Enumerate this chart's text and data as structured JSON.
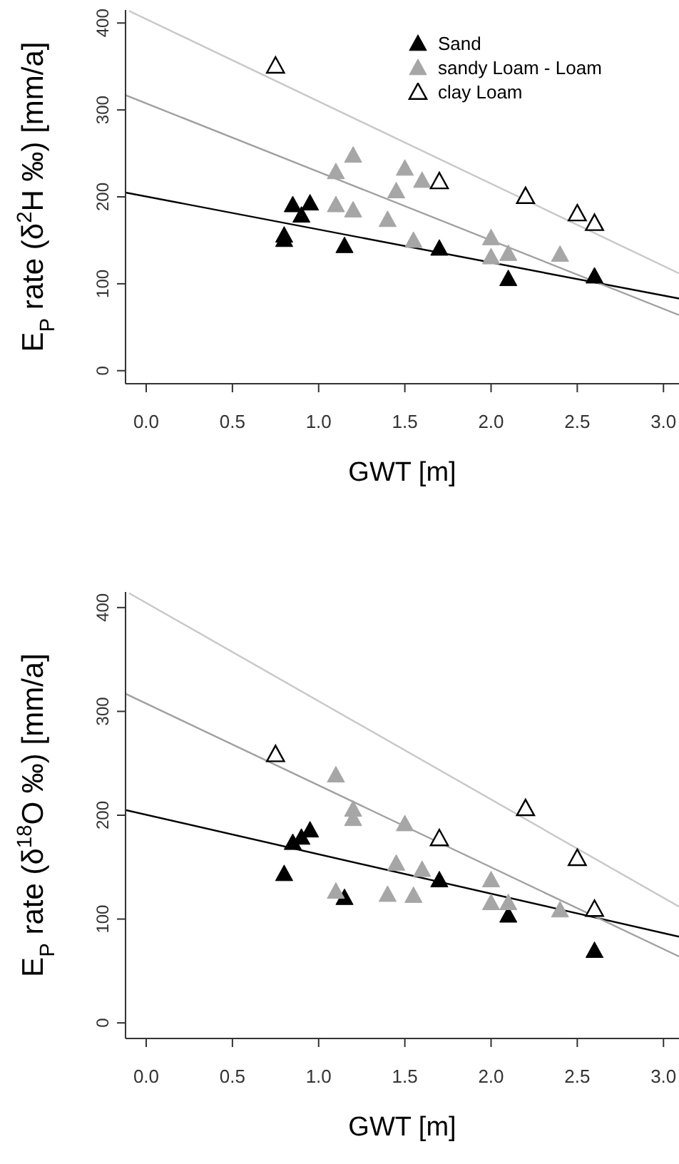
{
  "chart_data": [
    {
      "type": "scatter",
      "xlabel": "GWT [m]",
      "ylabel": "E$_{P}$ rate (δ$^{2}$H ‰) [mm/a]",
      "xlim": [
        -0.12,
        3.09
      ],
      "ylim": [
        -15,
        415
      ],
      "xticks": [
        {
          "value": 0,
          "label": "0.0"
        },
        {
          "value": 0.5,
          "label": "0.5"
        },
        {
          "value": 1,
          "label": "1.0"
        },
        {
          "value": 1.5,
          "label": "1.5"
        },
        {
          "value": 2,
          "label": "2.0"
        },
        {
          "value": 2.5,
          "label": "2.5"
        },
        {
          "value": 3,
          "label": "3.0"
        }
      ],
      "yticks": [
        0,
        100,
        200,
        300,
        400
      ],
      "legend": "top right",
      "marker": "triangle",
      "series": [
        {
          "name": "Sand",
          "color": "#000000",
          "x": [
            0.8,
            0.8,
            0.85,
            0.9,
            0.95,
            1.15,
            1.7,
            2.1,
            2.6
          ],
          "values": [
            155,
            150,
            190,
            178,
            192,
            143,
            140,
            105,
            108
          ]
        },
        {
          "name": "sandy Loam - Loam",
          "color": "#a6a6a6",
          "x": [
            1.1,
            1.1,
            1.2,
            1.2,
            1.4,
            1.45,
            1.5,
            1.55,
            1.6,
            2.0,
            2.0,
            2.1,
            2.4
          ],
          "values": [
            228,
            190,
            247,
            184,
            173,
            206,
            232,
            149,
            218,
            152,
            130,
            134,
            133
          ]
        },
        {
          "name": "clay Loam",
          "color": "#000000",
          "x": [
            0.75,
            1.7,
            2.2,
            2.5,
            2.6
          ],
          "values": [
            350,
            217,
            200,
            180,
            169
          ]
        },
        {
          "type": "line",
          "marker": "none",
          "color": "#000000",
          "x": [
            -0.12,
            3.09
          ],
          "values": [
            205,
            83
          ]
        },
        {
          "type": "line",
          "marker": "none",
          "color": "#a0a0a0",
          "x": [
            -0.12,
            3.09
          ],
          "values": [
            317,
            64
          ]
        },
        {
          "type": "line",
          "marker": "none",
          "color": "#c8c8c8",
          "x": [
            -0.1,
            3.09
          ],
          "values": [
            414,
            112
          ]
        }
      ]
    },
    {
      "type": "scatter",
      "xlabel": "GWT [m]",
      "ylabel": "E$_{P}$ rate (δ$^{18}$O ‰) [mm/a]",
      "xlim": [
        -0.12,
        3.09
      ],
      "ylim": [
        -15,
        415
      ],
      "xticks": [
        {
          "value": 0,
          "label": "0.0"
        },
        {
          "value": 0.5,
          "label": "0.5"
        },
        {
          "value": 1,
          "label": "1.0"
        },
        {
          "value": 1.5,
          "label": "1.5"
        },
        {
          "value": 2,
          "label": "2.0"
        },
        {
          "value": 2.5,
          "label": "2.5"
        },
        {
          "value": 3,
          "label": "3.0"
        }
      ],
      "yticks": [
        0,
        100,
        200,
        300,
        400
      ],
      "marker": "triangle",
      "series": [
        {
          "color": "#000000",
          "x": [
            0.8,
            0.85,
            0.9,
            0.95,
            1.15,
            1.7,
            2.1,
            2.6
          ],
          "values": [
            143,
            173,
            178,
            185,
            120,
            137,
            103,
            69
          ]
        },
        {
          "color": "#a6a6a6",
          "x": [
            1.1,
            1.1,
            1.2,
            1.2,
            1.4,
            1.45,
            1.5,
            1.55,
            1.6,
            2.0,
            2.0,
            2.1,
            2.4
          ],
          "values": [
            238,
            126,
            205,
            196,
            123,
            153,
            191,
            122,
            147,
            137,
            115,
            115,
            108
          ]
        },
        {
          "color": "#000000",
          "x": [
            0.75,
            1.7,
            2.2,
            2.5,
            2.6
          ],
          "values": [
            258,
            177,
            206,
            158,
            109
          ]
        },
        {
          "type": "line",
          "marker": "none",
          "color": "#000000",
          "x": [
            -0.12,
            3.09
          ],
          "values": [
            205,
            83
          ]
        },
        {
          "type": "line",
          "marker": "none",
          "color": "#a0a0a0",
          "x": [
            -0.12,
            3.09
          ],
          "values": [
            317,
            64
          ]
        },
        {
          "type": "line",
          "marker": "none",
          "color": "#c8c8c8",
          "x": [
            -0.1,
            3.09
          ],
          "values": [
            414,
            112
          ]
        }
      ]
    }
  ]
}
